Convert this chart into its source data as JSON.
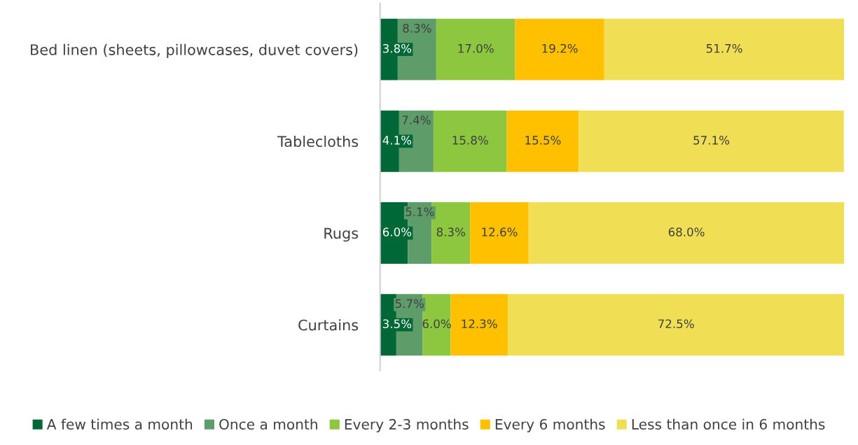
{
  "chart_data": {
    "type": "bar",
    "orientation": "horizontal",
    "stacked": true,
    "categories": [
      "Bed linen (sheets, pillowcases, duvet covers)",
      "Tablecloths",
      "Rugs",
      "Curtains"
    ],
    "series": [
      {
        "name": "A few times a month",
        "color": "#006837",
        "values": [
          3.8,
          4.1,
          6.0,
          3.5
        ],
        "value_labels": [
          "3.8%",
          "4.1%",
          "6.0%",
          "3.5%"
        ]
      },
      {
        "name": "Once a month",
        "color": "#5e9c6a",
        "values": [
          8.3,
          7.4,
          5.1,
          5.7
        ],
        "value_labels": [
          "8.3%",
          "7.4%",
          "5.1%",
          "5.7%"
        ]
      },
      {
        "name": "Every 2-3 months",
        "color": "#8dc63f",
        "values": [
          17.0,
          15.8,
          8.3,
          6.0
        ],
        "value_labels": [
          "17.0%",
          "15.8%",
          "8.3%",
          "6.0%"
        ]
      },
      {
        "name": "Every 6 months",
        "color": "#ffc000",
        "values": [
          19.2,
          15.5,
          12.6,
          12.3
        ],
        "value_labels": [
          "19.2%",
          "15.5%",
          "12.6%",
          "12.3%"
        ]
      },
      {
        "name": "Less than once in 6 months",
        "color": "#f0df55",
        "values": [
          51.7,
          57.1,
          68.0,
          72.5
        ],
        "value_labels": [
          "51.7%",
          "57.1%",
          "68.0%",
          "72.5%"
        ]
      }
    ],
    "xlim": [
      0,
      100
    ],
    "tick_labels": "y",
    "grid": false,
    "legend": "bottom"
  }
}
